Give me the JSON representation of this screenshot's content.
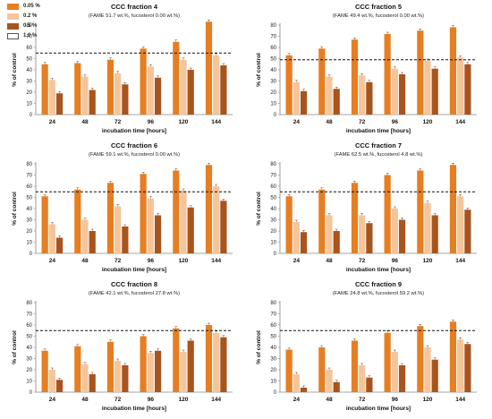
{
  "legend": {
    "items": [
      {
        "label": "0.05 %",
        "color": "#e67e22",
        "border": "#e67e22"
      },
      {
        "label": "0.2 %",
        "color": "#f5c59a",
        "border": "#f5c59a"
      },
      {
        "label": "0.5 %",
        "color": "#a8541e",
        "border": "#a8541e"
      },
      {
        "label": "1.0 %",
        "color": "#ffffff",
        "border": "#555555"
      }
    ]
  },
  "chart_data": [
    {
      "type": "bar",
      "title": "CCC fraction 4",
      "subtitle": "(FAME 51.7 wt.%, fucosterol 0.00 wt.%)",
      "xlabel": "incubation time [hours]",
      "ylabel": "% of control",
      "ylim": [
        0,
        80
      ],
      "yticks": [
        0,
        10,
        20,
        30,
        40,
        50,
        60,
        70,
        80
      ],
      "reference_line": 55,
      "categories": [
        "24",
        "48",
        "72",
        "96",
        "120",
        "144"
      ],
      "series": [
        {
          "name": "0.05 %",
          "values": [
            45,
            46,
            49,
            59,
            65,
            83
          ]
        },
        {
          "name": "0.2 %",
          "values": [
            31,
            34,
            37,
            43,
            49,
            53
          ]
        },
        {
          "name": "0.5 %",
          "values": [
            19,
            22,
            27,
            33,
            40,
            44
          ]
        }
      ]
    },
    {
      "type": "bar",
      "title": "CCC fraction 5",
      "subtitle": "(FAME 49.4 wt.%, fucosterol 0.00 wt.%)",
      "xlabel": "incubation time [hours]",
      "ylabel": "% of control",
      "ylim": [
        0,
        80
      ],
      "yticks": [
        0,
        10,
        20,
        30,
        40,
        50,
        60,
        70,
        80
      ],
      "reference_line": 49,
      "categories": [
        "24",
        "48",
        "72",
        "96",
        "120",
        "144"
      ],
      "series": [
        {
          "name": "0.05 %",
          "values": [
            53,
            59,
            67,
            72,
            75,
            78
          ]
        },
        {
          "name": "0.2 %",
          "values": [
            29,
            34,
            35,
            41,
            48,
            51
          ]
        },
        {
          "name": "0.5 %",
          "values": [
            21,
            23,
            29,
            36,
            41,
            45
          ]
        }
      ]
    },
    {
      "type": "bar",
      "title": "CCC fraction 6",
      "subtitle": "(FAME 59.1 wt.%, fucosterol 0.00 wt.%)",
      "xlabel": "incubation time [hours]",
      "ylabel": "% of control",
      "ylim": [
        0,
        80
      ],
      "yticks": [
        0,
        10,
        20,
        30,
        40,
        50,
        60,
        70,
        80
      ],
      "reference_line": 55,
      "categories": [
        "24",
        "48",
        "72",
        "96",
        "120",
        "144"
      ],
      "series": [
        {
          "name": "0.05 %",
          "values": [
            51,
            57,
            63,
            71,
            74,
            79
          ]
        },
        {
          "name": "0.2 %",
          "values": [
            26,
            30,
            42,
            49,
            56,
            60
          ]
        },
        {
          "name": "0.5 %",
          "values": [
            14,
            20,
            24,
            34,
            41,
            47
          ]
        }
      ]
    },
    {
      "type": "bar",
      "title": "CCC fraction 7",
      "subtitle": "(FAME 62.5 wt.%, fucosterol 4.8 wt.%)",
      "xlabel": "incubation time [hours]",
      "ylabel": "% of control",
      "ylim": [
        0,
        80
      ],
      "yticks": [
        0,
        10,
        20,
        30,
        40,
        50,
        60,
        70,
        80
      ],
      "reference_line": 55,
      "categories": [
        "24",
        "48",
        "72",
        "96",
        "120",
        "144"
      ],
      "series": [
        {
          "name": "0.05 %",
          "values": [
            51,
            57,
            63,
            70,
            74,
            79
          ]
        },
        {
          "name": "0.2 %",
          "values": [
            28,
            34,
            34,
            40,
            45,
            51
          ]
        },
        {
          "name": "0.5 %",
          "values": [
            19,
            20,
            27,
            30,
            34,
            39
          ]
        }
      ]
    },
    {
      "type": "bar",
      "title": "CCC fraction 8",
      "subtitle": "(FAME 42.1 wt.%, fucosterol 27.8 wt.%)",
      "xlabel": "incubation time [hours]",
      "ylabel": "% of control",
      "ylim": [
        0,
        80
      ],
      "yticks": [
        0,
        10,
        20,
        30,
        40,
        50,
        60,
        70,
        80
      ],
      "reference_line": 55,
      "categories": [
        "24",
        "48",
        "72",
        "96",
        "120",
        "144"
      ],
      "series": [
        {
          "name": "0.05 %",
          "values": [
            37,
            41,
            45,
            50,
            57,
            60
          ]
        },
        {
          "name": "0.2 %",
          "values": [
            20,
            25,
            28,
            35,
            36,
            53
          ]
        },
        {
          "name": "0.5 %",
          "values": [
            11,
            16,
            24,
            37,
            46,
            49
          ]
        }
      ]
    },
    {
      "type": "bar",
      "title": "CCC fraction 9",
      "subtitle": "(FAME 24.8 wt.%, fucosterol 59.2 wt.%)",
      "xlabel": "incubation time [hours]",
      "ylabel": "% of control",
      "ylim": [
        0,
        80
      ],
      "yticks": [
        0,
        10,
        20,
        30,
        40,
        50,
        60,
        70,
        80
      ],
      "reference_line": 55,
      "categories": [
        "24",
        "48",
        "72",
        "96",
        "120",
        "144"
      ],
      "series": [
        {
          "name": "0.05 %",
          "values": [
            38,
            40,
            46,
            53,
            59,
            63
          ]
        },
        {
          "name": "0.2 %",
          "values": [
            16,
            20,
            24,
            36,
            40,
            47
          ]
        },
        {
          "name": "0.5 %",
          "values": [
            4,
            9,
            13,
            24,
            29,
            43
          ]
        }
      ]
    }
  ]
}
